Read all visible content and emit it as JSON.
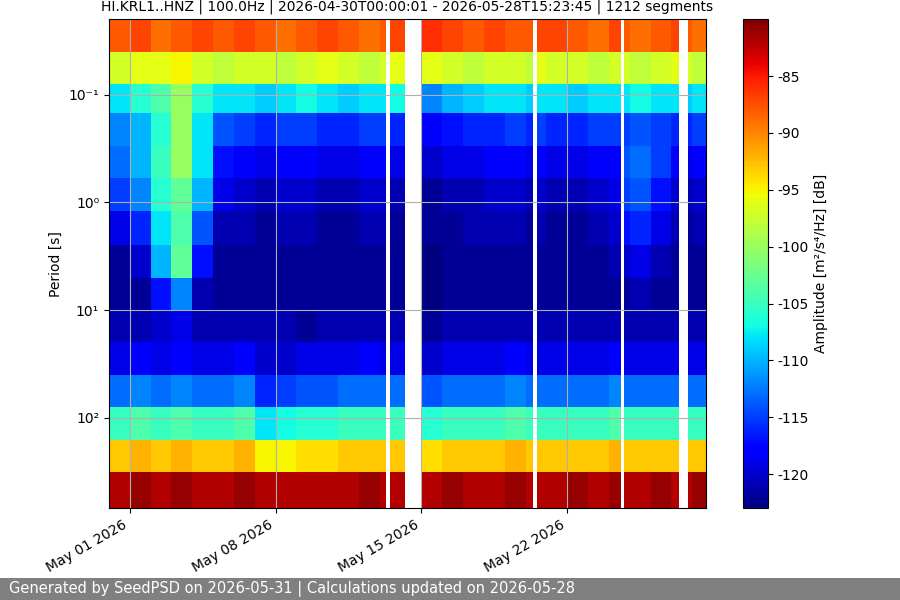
{
  "chart_data": {
    "type": "heatmap",
    "title": "HI.KRL1..HNZ | 100.0Hz | 2026-04-30T00:00:01 - 2026-05-28T15:23:45 | 1212 segments",
    "footer": "Generated by SeedPSD on 2026-05-31 | Calculations updated on 2026-05-28",
    "y_label": "Period [s]",
    "colorbar_label": "Amplitude [m²/s⁴/Hz] [dB]",
    "color": "jet",
    "log": "y",
    "grid": true,
    "x_edges": [
      "2026-04-30T00:00:01",
      "2026-05-01T00:00",
      "2026-05-02T00:00",
      "2026-05-03T00:00",
      "2026-05-04T00:00",
      "2026-05-05T00:00",
      "2026-05-06T00:00",
      "2026-05-07T00:00",
      "2026-05-08T00:00",
      "2026-05-09T00:00",
      "2026-05-10T00:00",
      "2026-05-11T00:00",
      "2026-05-12T00:00",
      "2026-05-13T00:00",
      "2026-05-13T07:00",
      "2026-05-13T12:00",
      "2026-05-14T05:00",
      "2026-05-15T00:00",
      "2026-05-16T00:00",
      "2026-05-17T00:00",
      "2026-05-18T00:00",
      "2026-05-19T00:00",
      "2026-05-20T00:00",
      "2026-05-20T09:00",
      "2026-05-20T13:00",
      "2026-05-21T00:00",
      "2026-05-22T00:00",
      "2026-05-23T00:00",
      "2026-05-24T00:00",
      "2026-05-24T14:00",
      "2026-05-24T17:00",
      "2026-05-25T00:00",
      "2026-05-26T00:00",
      "2026-05-27T00:00",
      "2026-05-27T09:00",
      "2026-05-27T19:00",
      "2026-05-28T00:00",
      "2026-05-28T15:23:45"
    ],
    "period_edges": [
      0.02,
      0.04,
      0.08,
      0.15,
      0.3,
      0.6,
      1.2,
      2.5,
      5,
      10,
      20,
      40,
      80,
      160,
      320,
      690
    ],
    "cells": [
      [
        -88,
        -87,
        -89,
        -88,
        -87,
        -88,
        -87,
        -88,
        -89,
        -88,
        -87,
        -88,
        -89,
        -88,
        null,
        -87,
        null,
        -86,
        -87,
        -88,
        -87,
        -88,
        -88,
        null,
        -87,
        -87,
        -88,
        -89,
        -87,
        null,
        -88,
        -89,
        -88,
        -87,
        null,
        -88,
        -89
      ],
      [
        -97,
        -96,
        -96,
        -95,
        -97,
        -98,
        -97,
        -97,
        -98,
        -97,
        -96,
        -97,
        -98,
        -97,
        null,
        -96,
        null,
        -96,
        -97,
        -98,
        -97,
        -97,
        -98,
        null,
        -96,
        -97,
        -97,
        -98,
        -97,
        null,
        -97,
        -98,
        -97,
        -96,
        null,
        -97,
        -98
      ],
      [
        -108,
        -106,
        -104,
        -100,
        -106,
        -108,
        -108,
        -109,
        -108,
        -107,
        -108,
        -109,
        -108,
        -108,
        null,
        -107,
        null,
        -112,
        -110,
        -109,
        -108,
        -108,
        -109,
        null,
        -108,
        -108,
        -109,
        -108,
        -108,
        null,
        -108,
        -107,
        -108,
        -108,
        null,
        -109,
        -108
      ],
      [
        -112,
        -110,
        -106,
        -100,
        -108,
        -114,
        -115,
        -116,
        -115,
        -115,
        -116,
        -116,
        -115,
        -115,
        null,
        -116,
        null,
        -118,
        -117,
        -116,
        -116,
        -115,
        -116,
        null,
        -115,
        -116,
        -116,
        -115,
        -115,
        null,
        -115,
        -114,
        -115,
        -116,
        null,
        -116,
        -115
      ],
      [
        -113,
        -110,
        -105,
        -100,
        -108,
        -117,
        -118,
        -119,
        -118,
        -118,
        -119,
        -119,
        -118,
        -118,
        null,
        -119,
        null,
        -120,
        -119,
        -119,
        -118,
        -118,
        -119,
        null,
        -118,
        -119,
        -119,
        -118,
        -118,
        null,
        -114,
        -113,
        -115,
        -118,
        null,
        -119,
        -118
      ],
      [
        -115,
        -112,
        -106,
        -103,
        -110,
        -119,
        -120,
        -121,
        -120,
        -120,
        -121,
        -121,
        -120,
        -120,
        null,
        -121,
        null,
        -122,
        -121,
        -121,
        -120,
        -120,
        -121,
        null,
        -120,
        -121,
        -121,
        -120,
        -119,
        null,
        -115,
        -114,
        -117,
        -120,
        null,
        -121,
        -120
      ],
      [
        -119,
        -116,
        -108,
        -104,
        -114,
        -121,
        -121,
        -122,
        -121,
        -121,
        -122,
        -122,
        -121,
        -121,
        null,
        -122,
        null,
        -122,
        -122,
        -121,
        -121,
        -121,
        -122,
        null,
        -121,
        -122,
        -122,
        -121,
        -120,
        null,
        -117,
        -116,
        -119,
        -121,
        null,
        -122,
        -121
      ],
      [
        -122,
        -120,
        -110,
        -103,
        -117,
        -122,
        -122,
        -122,
        -122,
        -122,
        -122,
        -122,
        -122,
        -122,
        null,
        -122,
        null,
        -123,
        -122,
        -122,
        -122,
        -122,
        -122,
        null,
        -122,
        -122,
        -122,
        -122,
        -121,
        null,
        -120,
        -119,
        -121,
        -122,
        null,
        -122,
        -122
      ],
      [
        -122,
        -122,
        -117,
        -112,
        -121,
        -122,
        -122,
        -122,
        -122,
        -122,
        -122,
        -122,
        -122,
        -122,
        null,
        -122,
        null,
        -123,
        -122,
        -122,
        -122,
        -122,
        -122,
        null,
        -122,
        -122,
        -122,
        -122,
        -122,
        null,
        -122,
        -121,
        -122,
        -122,
        null,
        -122,
        -122
      ],
      [
        -121,
        -121,
        -120,
        -119,
        -121,
        -121,
        -121,
        -121,
        -121,
        -122,
        -121,
        -121,
        -121,
        -121,
        null,
        -121,
        null,
        -122,
        -121,
        -121,
        -121,
        -121,
        -121,
        null,
        -121,
        -121,
        -121,
        -121,
        -121,
        null,
        -121,
        -121,
        -121,
        -121,
        null,
        -121,
        -121
      ],
      [
        -119,
        -118,
        -119,
        -118,
        -119,
        -119,
        -118,
        -120,
        -120,
        -119,
        -119,
        -119,
        -118,
        -119,
        null,
        -119,
        null,
        -120,
        -119,
        -119,
        -119,
        -118,
        -119,
        null,
        -119,
        -119,
        -119,
        -119,
        -118,
        null,
        -119,
        -119,
        -119,
        -119,
        null,
        -119,
        -119
      ],
      [
        -113,
        -112,
        -113,
        -112,
        -113,
        -113,
        -112,
        -116,
        -115,
        -114,
        -114,
        -113,
        -113,
        -113,
        null,
        -113,
        null,
        -114,
        -113,
        -113,
        -113,
        -112,
        -113,
        null,
        -113,
        -113,
        -113,
        -113,
        -112,
        null,
        -113,
        -113,
        -113,
        -113,
        null,
        -113,
        -113
      ],
      [
        -105,
        -104,
        -105,
        -104,
        -105,
        -105,
        -104,
        -108,
        -107,
        -106,
        -106,
        -105,
        -105,
        -105,
        null,
        -105,
        null,
        -106,
        -105,
        -105,
        -105,
        -104,
        -105,
        null,
        -105,
        -105,
        -105,
        -105,
        -104,
        null,
        -105,
        -105,
        -105,
        -105,
        null,
        -105,
        -105
      ],
      [
        -93,
        -92,
        -93,
        -92,
        -93,
        -93,
        -92,
        -95,
        -95,
        -94,
        -94,
        -93,
        -93,
        -93,
        null,
        -93,
        null,
        -94,
        -93,
        -93,
        -93,
        -92,
        -93,
        null,
        -93,
        -93,
        -93,
        -93,
        -92,
        null,
        -93,
        -93,
        -93,
        -93,
        null,
        -93,
        -93
      ],
      [
        -82,
        -81,
        -82,
        -81,
        -82,
        -82,
        -81,
        -82,
        -82,
        -82,
        -82,
        -82,
        -81,
        -82,
        null,
        -82,
        null,
        -82,
        -81,
        -82,
        -82,
        -81,
        -82,
        null,
        -82,
        -82,
        -81,
        -82,
        -81,
        null,
        -82,
        -82,
        -81,
        -82,
        null,
        -82,
        -81
      ]
    ],
    "xlim": [
      "2026-04-30T00:00:01",
      "2026-05-28T15:23:45"
    ],
    "xticks": [
      {
        "value": "2026-05-01",
        "label": "May 01 2026"
      },
      {
        "value": "2026-05-08",
        "label": "May 08 2026"
      },
      {
        "value": "2026-05-15",
        "label": "May 15 2026"
      },
      {
        "value": "2026-05-22",
        "label": "May 22 2026"
      }
    ],
    "ylim": [
      690,
      0.02
    ],
    "yticks": [
      {
        "value": 0.1,
        "label": "10⁻¹"
      },
      {
        "value": 1,
        "label": "10⁰"
      },
      {
        "value": 10,
        "label": "10¹"
      },
      {
        "value": 100,
        "label": "10²"
      }
    ],
    "color_range": [
      -123,
      -80
    ],
    "color_ticks": [
      -85,
      -90,
      -95,
      -100,
      -105,
      -110,
      -115,
      -120
    ]
  }
}
